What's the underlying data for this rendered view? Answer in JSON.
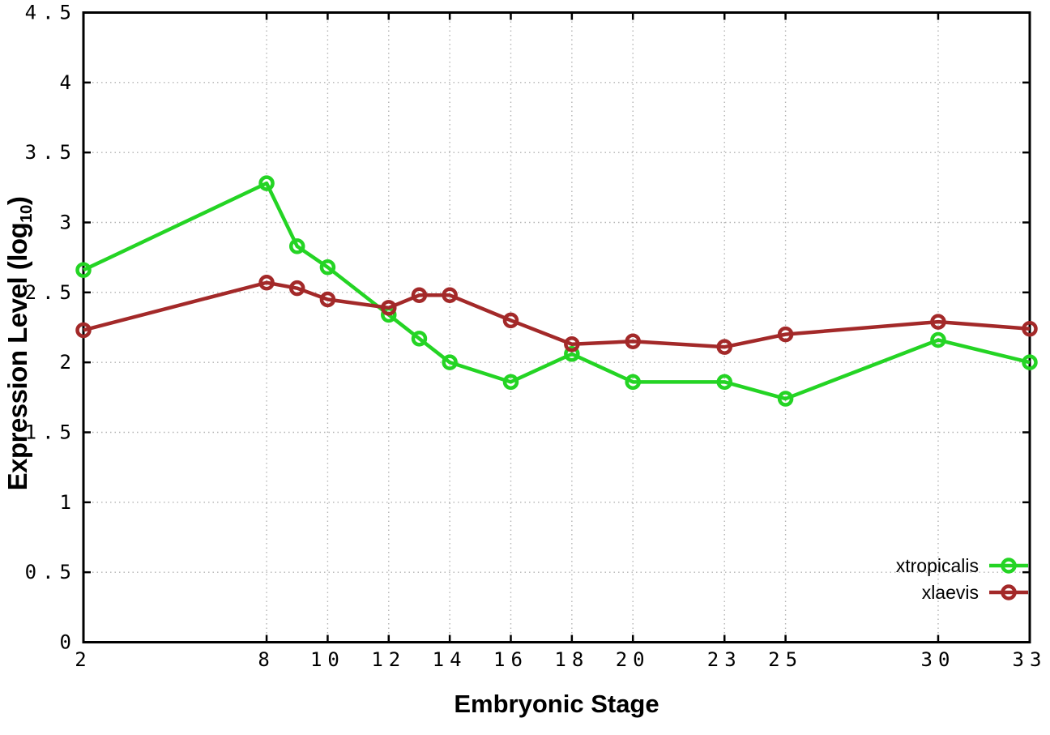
{
  "chart_data": {
    "type": "line",
    "title": "",
    "xlabel": "Embryonic Stage",
    "ylabel": {
      "pre": "Expression Level (log",
      "sub": "10",
      "post": ")"
    },
    "x": [
      2,
      8,
      9,
      10,
      12,
      13,
      14,
      16,
      18,
      20,
      23,
      25,
      30,
      33
    ],
    "xlim": [
      2,
      33
    ],
    "ylim": [
      0,
      4.5
    ],
    "xticks": {
      "values": [
        2,
        8,
        10,
        12,
        14,
        16,
        18,
        20,
        23,
        25,
        30,
        33
      ],
      "labels": [
        "2",
        "8",
        "10",
        "12",
        "14",
        "16",
        "18",
        "20",
        "23",
        "25",
        "30",
        "33"
      ]
    },
    "yticks": {
      "values": [
        0,
        0.5,
        1,
        1.5,
        2,
        2.5,
        3,
        3.5,
        4,
        4.5
      ],
      "labels": [
        "0",
        "0.5",
        "1",
        "1.5",
        "2",
        "2.5",
        "3",
        "3.5",
        "4",
        "4.5"
      ]
    },
    "grid": true,
    "grid_style": "dotted",
    "legend_position": "inside-bottom-right",
    "series": [
      {
        "name": "xtropicalis",
        "color": "#24d424",
        "marker": "open-circle",
        "values": [
          2.66,
          3.28,
          2.83,
          2.68,
          2.34,
          2.17,
          2.0,
          1.86,
          2.06,
          1.86,
          1.86,
          1.74,
          2.16,
          2.0
        ]
      },
      {
        "name": "xlaevis",
        "color": "#a32929",
        "marker": "open-circle",
        "values": [
          2.23,
          2.57,
          2.53,
          2.45,
          2.39,
          2.48,
          2.48,
          2.3,
          2.13,
          2.15,
          2.11,
          2.2,
          2.29,
          2.24
        ]
      }
    ],
    "colors": {
      "background": "#ffffff",
      "axis": "#000000",
      "grid": "#b3b3b3",
      "text": "#000000"
    }
  }
}
